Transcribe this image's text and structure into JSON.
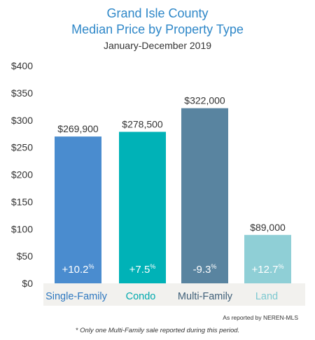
{
  "chart_data": {
    "type": "bar",
    "title": "Grand Isle County",
    "title_line2": "Median Price by Property Type",
    "subtitle": "January-December 2019",
    "categories": [
      "Single-Family",
      "Condo",
      "Multi-Family",
      "Land"
    ],
    "values": [
      269900,
      278500,
      322000,
      89000
    ],
    "value_labels": [
      "$269,900",
      "$278,500",
      "$322,000",
      "$89,000"
    ],
    "change_labels": [
      {
        "number": "+10.2",
        "unit": "%"
      },
      {
        "number": "+7.5",
        "unit": "%"
      },
      {
        "number": "-9.3",
        "unit": "%"
      },
      {
        "number": "+12.7",
        "unit": "%"
      }
    ],
    "bar_colors": [
      "#4a8ccf",
      "#00b2b7",
      "#5984a0",
      "#8fcfd6"
    ],
    "category_colors": [
      "#2e78c0",
      "#00a9ae",
      "#3f5f78",
      "#7cc8d0"
    ],
    "yticks": [
      "$0",
      "$50",
      "$100",
      "$150",
      "$200",
      "$250",
      "$300",
      "$350",
      "$400"
    ],
    "ylim": [
      0,
      400000
    ],
    "grid": false,
    "legend": "none",
    "source_note": "As reported by NEREN-MLS",
    "footnote": "* Only one Multi-Family sale reported during this period."
  }
}
